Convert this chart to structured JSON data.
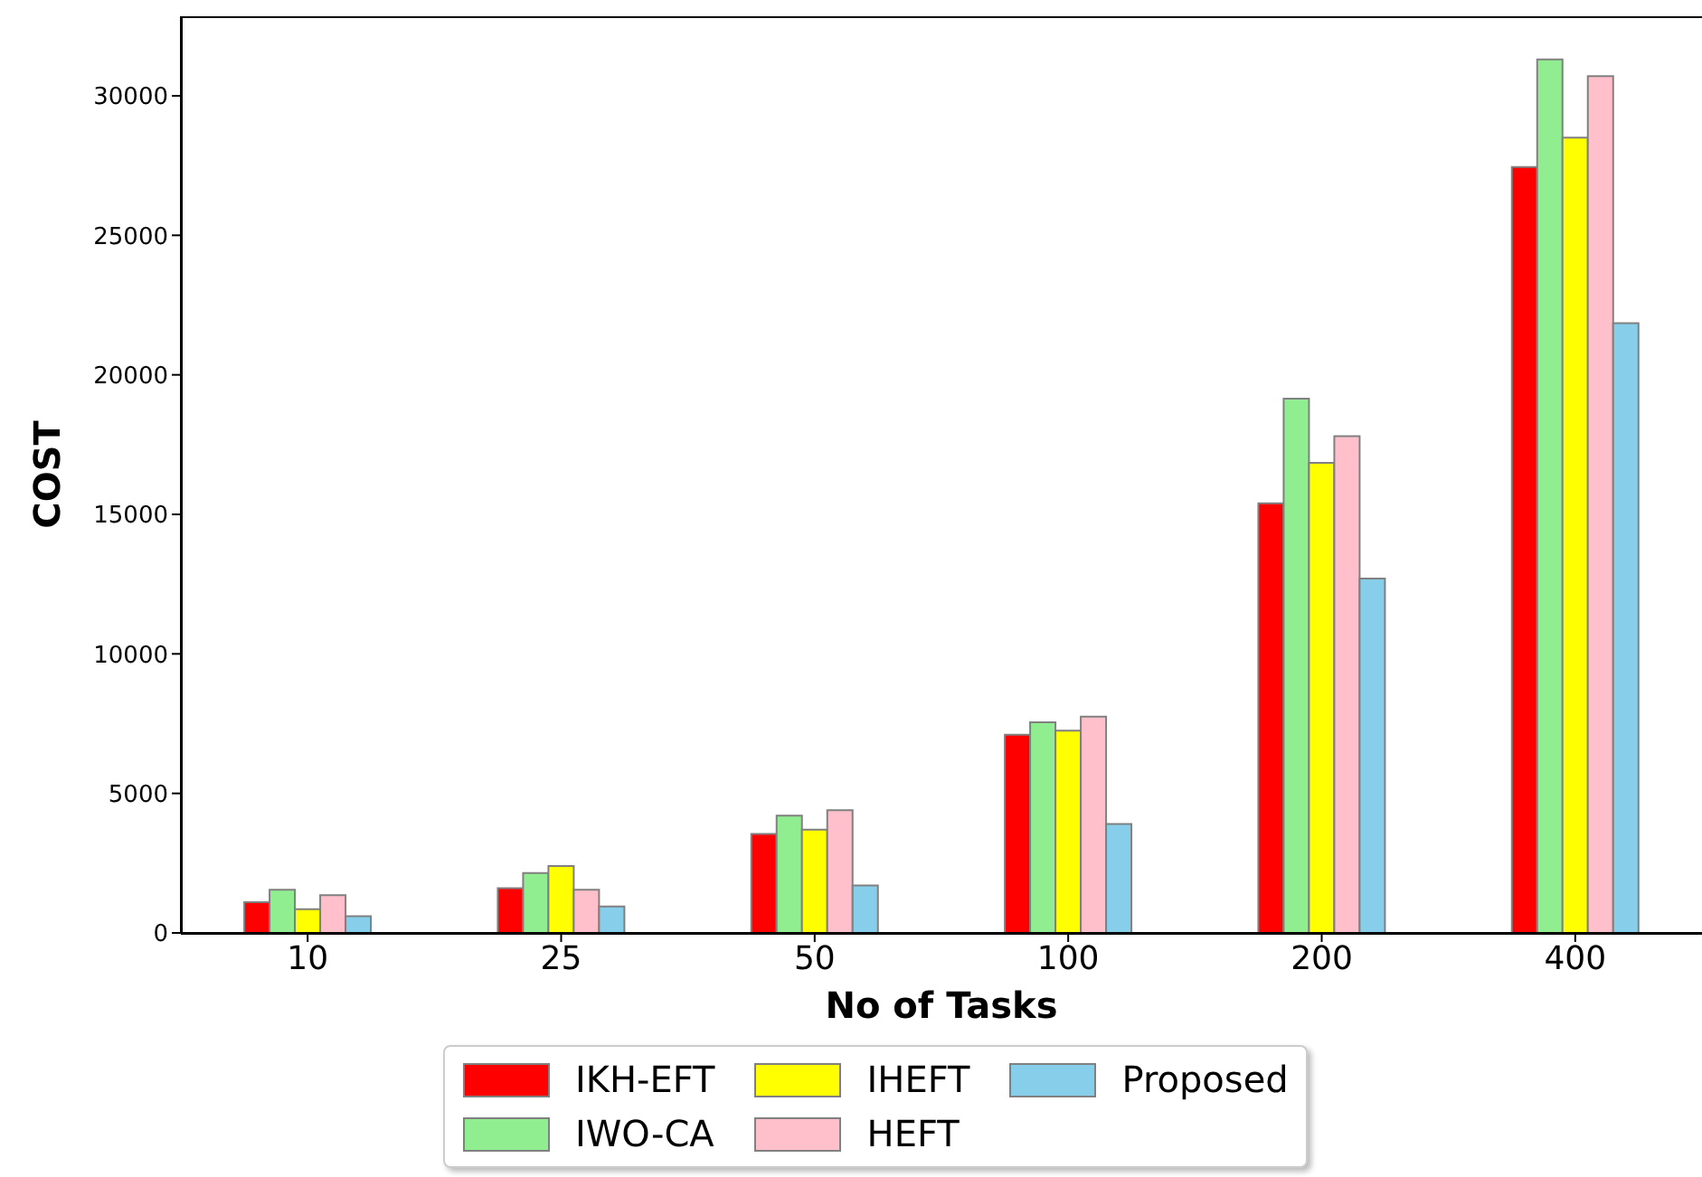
{
  "chart_data": {
    "type": "bar",
    "xlabel": "No of Tasks",
    "ylabel": "COST",
    "categories": [
      "10",
      "25",
      "50",
      "100",
      "200",
      "400"
    ],
    "series": [
      {
        "name": "IKH-EFT",
        "color": "#ff0000",
        "values": [
          1100,
          1600,
          3550,
          7100,
          15400,
          27450
        ]
      },
      {
        "name": "IWO-CA",
        "color": "#90ee90",
        "values": [
          1550,
          2150,
          4200,
          7550,
          19150,
          31300
        ]
      },
      {
        "name": "IHEFT",
        "color": "#ffff00",
        "values": [
          850,
          2400,
          3700,
          7250,
          16850,
          28500
        ]
      },
      {
        "name": "HEFT",
        "color": "#ffc0cb",
        "values": [
          1350,
          1550,
          4400,
          7750,
          17800,
          30700
        ]
      },
      {
        "name": "Proposed",
        "color": "#87ceeb",
        "values": [
          600,
          950,
          1700,
          3900,
          12700,
          21850
        ]
      }
    ],
    "ylim": [
      0,
      32850
    ],
    "yticks": [
      0,
      5000,
      10000,
      15000,
      20000,
      25000,
      30000
    ],
    "grid": false,
    "legend": "bottom"
  }
}
